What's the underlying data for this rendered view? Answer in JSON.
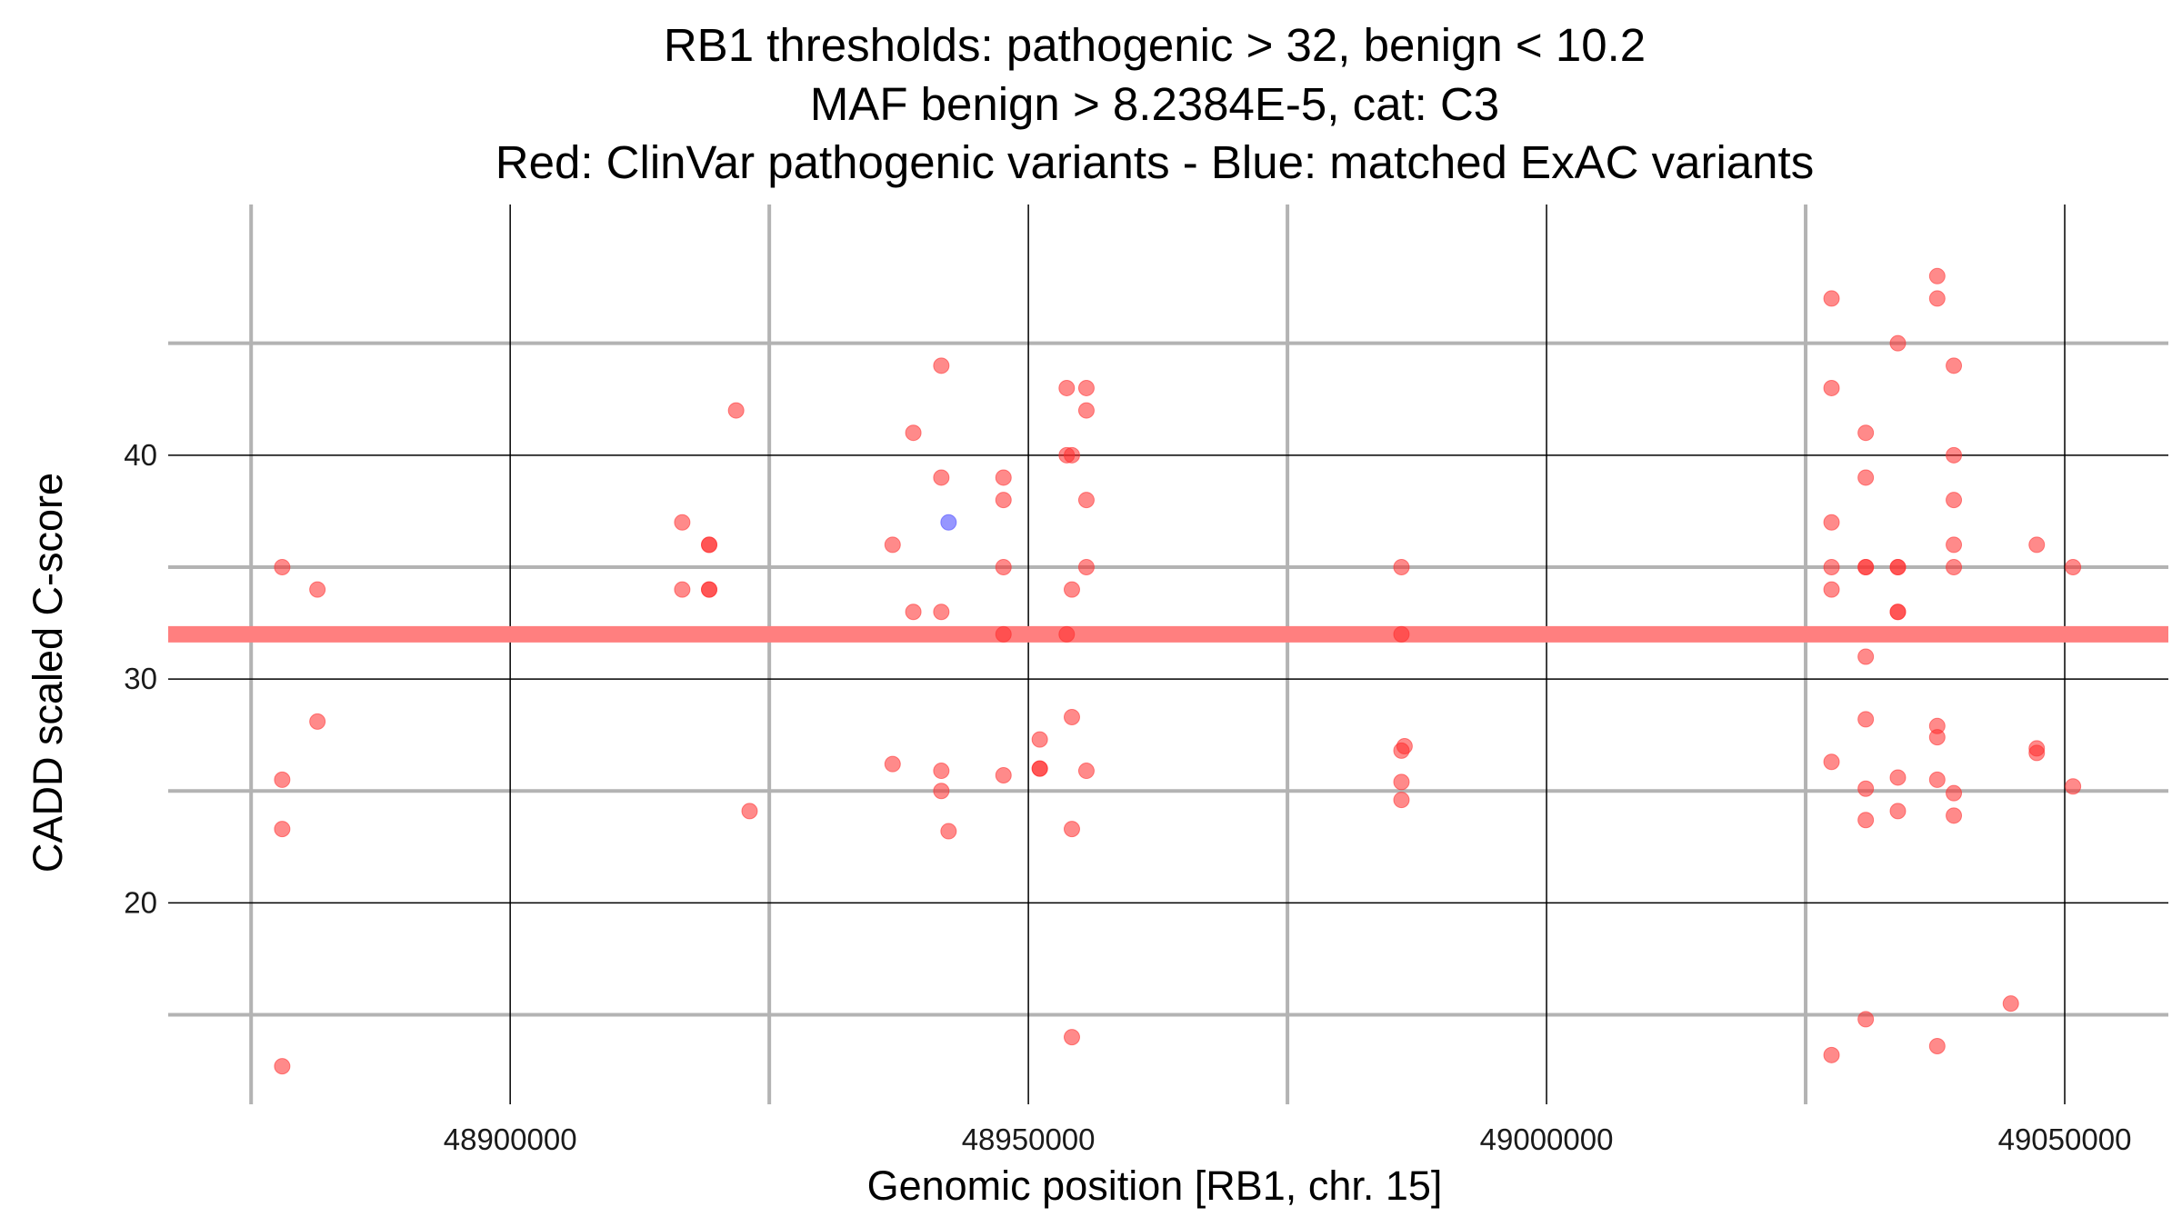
{
  "chart_data": {
    "type": "scatter",
    "title_lines": [
      "RB1 thresholds: pathogenic > 32, benign < 10.2",
      "MAF benign > 8.2384E-5, cat: C3",
      "Red: ClinVar pathogenic variants - Blue: matched ExAC variants"
    ],
    "xlabel": "Genomic position [RB1, chr. 15]",
    "ylabel": "CADD scaled C-score",
    "xlim": [
      48867000,
      49060000
    ],
    "ylim": [
      11,
      51.2
    ],
    "x_ticks": [
      48900000,
      48950000,
      49000000,
      49050000
    ],
    "x_tick_labels": [
      "48900000",
      "48950000",
      "49000000",
      "49050000"
    ],
    "x_minor_ticks": [
      48875000,
      48925000,
      48975000,
      49025000
    ],
    "y_ticks": [
      20,
      30,
      40
    ],
    "y_tick_labels": [
      "20",
      "30",
      "40"
    ],
    "y_minor_ticks": [
      15,
      25,
      35,
      45
    ],
    "grid": true,
    "threshold": {
      "label": "pathogenic",
      "value": 32,
      "color": "#ff7f7f"
    },
    "series": [
      {
        "name": "ClinVar pathogenic variants",
        "color": "#ff2a2a",
        "points": [
          [
            48878000,
            35
          ],
          [
            48878000,
            25.5
          ],
          [
            48878000,
            23.3
          ],
          [
            48878000,
            12.7
          ],
          [
            48881400,
            34
          ],
          [
            48881400,
            28.1
          ],
          [
            48916600,
            37
          ],
          [
            48916600,
            34
          ],
          [
            48919200,
            36
          ],
          [
            48919200,
            36
          ],
          [
            48919200,
            34
          ],
          [
            48919200,
            34
          ],
          [
            48921800,
            42
          ],
          [
            48923100,
            24.1
          ],
          [
            48936900,
            36
          ],
          [
            48936900,
            26.2
          ],
          [
            48938900,
            41
          ],
          [
            48938900,
            33
          ],
          [
            48941600,
            44
          ],
          [
            48941600,
            39
          ],
          [
            48941600,
            33
          ],
          [
            48941600,
            25.9
          ],
          [
            48941600,
            25
          ],
          [
            48942300,
            23.2
          ],
          [
            48947600,
            39
          ],
          [
            48947600,
            38
          ],
          [
            48947600,
            35
          ],
          [
            48947600,
            32
          ],
          [
            48947600,
            25.7
          ],
          [
            48951100,
            27.3
          ],
          [
            48951100,
            26
          ],
          [
            48951100,
            26
          ],
          [
            48953700,
            43
          ],
          [
            48953700,
            40
          ],
          [
            48953700,
            32
          ],
          [
            48954200,
            40
          ],
          [
            48954200,
            34
          ],
          [
            48954200,
            28.3
          ],
          [
            48954200,
            23.3
          ],
          [
            48954200,
            14
          ],
          [
            48955600,
            43
          ],
          [
            48955600,
            42
          ],
          [
            48955600,
            38
          ],
          [
            48955600,
            35
          ],
          [
            48955600,
            25.9
          ],
          [
            48986000,
            35
          ],
          [
            48986000,
            32
          ],
          [
            48986000,
            26.8
          ],
          [
            48986000,
            25.4
          ],
          [
            48986000,
            24.6
          ],
          [
            48986300,
            27
          ],
          [
            49027500,
            47
          ],
          [
            49027500,
            43
          ],
          [
            49027500,
            37
          ],
          [
            49027500,
            35
          ],
          [
            49027500,
            34
          ],
          [
            49027500,
            26.3
          ],
          [
            49027500,
            13.2
          ],
          [
            49030800,
            41
          ],
          [
            49030800,
            39
          ],
          [
            49030800,
            35
          ],
          [
            49030800,
            35
          ],
          [
            49030800,
            31
          ],
          [
            49030800,
            28.2
          ],
          [
            49030800,
            25.1
          ],
          [
            49030800,
            23.7
          ],
          [
            49030800,
            14.8
          ],
          [
            49033900,
            45
          ],
          [
            49033900,
            35
          ],
          [
            49033900,
            35
          ],
          [
            49033900,
            33
          ],
          [
            49033900,
            33
          ],
          [
            49033900,
            25.6
          ],
          [
            49033900,
            24.1
          ],
          [
            49037700,
            48
          ],
          [
            49037700,
            47
          ],
          [
            49037700,
            27.9
          ],
          [
            49037700,
            27.4
          ],
          [
            49037700,
            25.5
          ],
          [
            49037700,
            13.6
          ],
          [
            49039300,
            44
          ],
          [
            49039300,
            40
          ],
          [
            49039300,
            38
          ],
          [
            49039300,
            36
          ],
          [
            49039300,
            35
          ],
          [
            49039300,
            24.9
          ],
          [
            49039300,
            23.9
          ],
          [
            49044800,
            15.5
          ],
          [
            49047300,
            36
          ],
          [
            49047300,
            26.9
          ],
          [
            49047300,
            26.7
          ],
          [
            49050800,
            35
          ],
          [
            49050800,
            25.2
          ]
        ]
      },
      {
        "name": "matched ExAC variants",
        "color": "#4040ff",
        "points": [
          [
            48942300,
            37
          ]
        ]
      }
    ]
  }
}
